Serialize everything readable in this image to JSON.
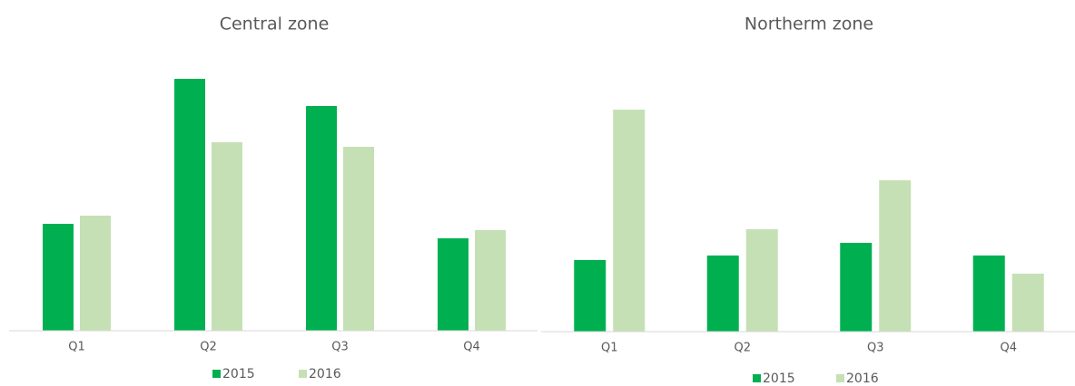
{
  "chart_data": [
    {
      "type": "bar",
      "title": "Central zone",
      "categories": [
        "Q1",
        "Q2",
        "Q3",
        "Q4"
      ],
      "series": [
        {
          "name": "2015",
          "color": "#00b050",
          "values": [
            118,
            278,
            248,
            102
          ]
        },
        {
          "name": "2016",
          "color": "#c5e0b4",
          "values": [
            127,
            208,
            203,
            111
          ]
        }
      ],
      "ylim": [
        0,
        300
      ]
    },
    {
      "type": "bar",
      "title": "Northerm zone",
      "categories": [
        "Q1",
        "Q2",
        "Q3",
        "Q4"
      ],
      "series": [
        {
          "name": "2015",
          "color": "#00b050",
          "values": [
            79,
            84,
            98,
            84
          ]
        },
        {
          "name": "2016",
          "color": "#c5e0b4",
          "values": [
            245,
            113,
            167,
            64
          ]
        }
      ],
      "ylim": [
        0,
        300
      ]
    }
  ]
}
